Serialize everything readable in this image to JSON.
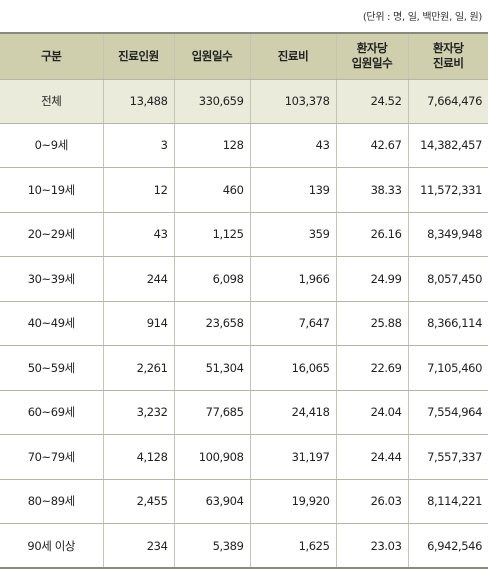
{
  "unit_note": "(단위 : 명, 일, 백만원, 일, 원)",
  "headers": [
    "구분",
    "진료인원",
    "입원일수",
    "진료비",
    "환자당\n입원일수",
    "환자당\n진료비"
  ],
  "rows": [
    [
      "전체",
      "13,488",
      "330,659",
      "103,378",
      "24.52",
      "7,664,476"
    ],
    [
      "0~9세",
      "3",
      "128",
      "43",
      "42.67",
      "14,382,457"
    ],
    [
      "10~19세",
      "12",
      "460",
      "139",
      "38.33",
      "11,572,331"
    ],
    [
      "20~29세",
      "43",
      "1,125",
      "359",
      "26.16",
      "8,349,948"
    ],
    [
      "30~39세",
      "244",
      "6,098",
      "1,966",
      "24.99",
      "8,057,450"
    ],
    [
      "40~49세",
      "914",
      "23,658",
      "7,647",
      "25.88",
      "8,366,114"
    ],
    [
      "50~59세",
      "2,261",
      "51,304",
      "16,065",
      "22.69",
      "7,105,460"
    ],
    [
      "60~69세",
      "3,232",
      "77,685",
      "24,418",
      "24.04",
      "7,554,964"
    ],
    [
      "70~79세",
      "4,128",
      "100,908",
      "31,197",
      "24.44",
      "7,557,337"
    ],
    [
      "80~89세",
      "2,455",
      "63,904",
      "19,920",
      "26.03",
      "8,114,221"
    ],
    [
      "90세 이상",
      "234",
      "5,389",
      "1,625",
      "23.03",
      "6,942,546"
    ]
  ],
  "colors": {
    "header_bg": "#cfcfae",
    "total_row_bg": "#ebebdc",
    "rule": "#8a8a7c"
  }
}
